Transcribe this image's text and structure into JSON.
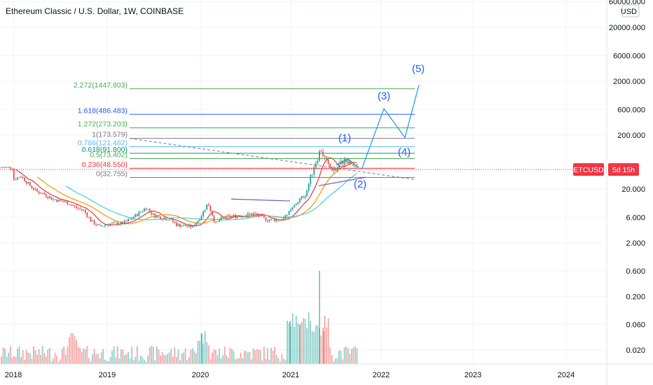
{
  "header": {
    "title": "Ethereum Classic / U.S. Dollar, 1W, COINBASE"
  },
  "axis": {
    "currency": "USD",
    "price_ticks": [
      "60000.000",
      "20000.000",
      "6000.000",
      "2000.000",
      "600.000",
      "200.000",
      "20.000",
      "6.000",
      "2.000",
      "0.600",
      "0.200",
      "0.060",
      "0.020"
    ],
    "year_ticks": [
      "2018",
      "2019",
      "2020",
      "2021",
      "2022",
      "2023",
      "2024"
    ]
  },
  "price_tag": {
    "symbol": "ETCUSD",
    "countdown": "5d 15h",
    "color": "#f23645"
  },
  "chart_data": {
    "type": "candlestick",
    "title": "Ethereum Classic / U.S. Dollar, 1W, COINBASE",
    "symbol": "ETCUSD",
    "interval": "1W",
    "exchange": "COINBASE",
    "y_scale": "log",
    "x_range": [
      "2018-01",
      "2024-08"
    ],
    "fib_levels": [
      {
        "label": "2.272(1447.803)",
        "value": 1447.803,
        "color": "#4caf50"
      },
      {
        "label": "1.618(486.483)",
        "value": 486.483,
        "color": "#2962ff"
      },
      {
        "label": "1.272(273.203)",
        "value": 273.203,
        "color": "#4caf50"
      },
      {
        "label": "1(173.579)",
        "value": 173.579,
        "color": "#787b86"
      },
      {
        "label": "0.786(121.482)",
        "value": 121.482,
        "color": "#64b5f6"
      },
      {
        "label": "0.618(91.800)",
        "value": 91.8,
        "color": "#089981"
      },
      {
        "label": "0.5(73.402)",
        "value": 73.402,
        "color": "#4caf50"
      },
      {
        "label": "0.236(48.550)",
        "value": 48.55,
        "color": "#f23645"
      },
      {
        "label": "0(32.755)",
        "value": 32.755,
        "color": "#787b86"
      }
    ],
    "elliott_waves": [
      {
        "label": "(1)",
        "value": 120
      },
      {
        "label": "(2)",
        "value": 22
      },
      {
        "label": "(3)",
        "value": 620
      },
      {
        "label": "(4)",
        "value": 180
      },
      {
        "label": "(5)",
        "value": 1700
      }
    ],
    "price_series": [
      {
        "date": "2018-01",
        "value": 30
      },
      {
        "date": "2018-02",
        "value": 35
      },
      {
        "date": "2018-03",
        "value": 24
      },
      {
        "date": "2018-04",
        "value": 18
      },
      {
        "date": "2018-05",
        "value": 16
      },
      {
        "date": "2018-06",
        "value": 13
      },
      {
        "date": "2018-08",
        "value": 11
      },
      {
        "date": "2018-09",
        "value": 9
      },
      {
        "date": "2018-10",
        "value": 8
      },
      {
        "date": "2018-11",
        "value": 5
      },
      {
        "date": "2018-12",
        "value": 4
      },
      {
        "date": "2019-01",
        "value": 4.5
      },
      {
        "date": "2019-03",
        "value": 4.6
      },
      {
        "date": "2019-04",
        "value": 5.5
      },
      {
        "date": "2019-06",
        "value": 9
      },
      {
        "date": "2019-07",
        "value": 6.5
      },
      {
        "date": "2019-08",
        "value": 5.8
      },
      {
        "date": "2019-09",
        "value": 5.6
      },
      {
        "date": "2019-10",
        "value": 4.3
      },
      {
        "date": "2019-12",
        "value": 4
      },
      {
        "date": "2020-01",
        "value": 6
      },
      {
        "date": "2020-02",
        "value": 11
      },
      {
        "date": "2020-03",
        "value": 4.5
      },
      {
        "date": "2020-04",
        "value": 6
      },
      {
        "date": "2020-06",
        "value": 6.3
      },
      {
        "date": "2020-08",
        "value": 7
      },
      {
        "date": "2020-10",
        "value": 5.3
      },
      {
        "date": "2020-12",
        "value": 5.5
      },
      {
        "date": "2021-01",
        "value": 8
      },
      {
        "date": "2021-02",
        "value": 12
      },
      {
        "date": "2021-03",
        "value": 16
      },
      {
        "date": "2021-04",
        "value": 50
      },
      {
        "date": "2021-05",
        "value": 110
      },
      {
        "date": "2021-06",
        "value": 52
      },
      {
        "date": "2021-07",
        "value": 45
      },
      {
        "date": "2021-08",
        "value": 70
      },
      {
        "date": "2021-09",
        "value": 56
      },
      {
        "date": "2021-10",
        "value": 50
      }
    ]
  }
}
